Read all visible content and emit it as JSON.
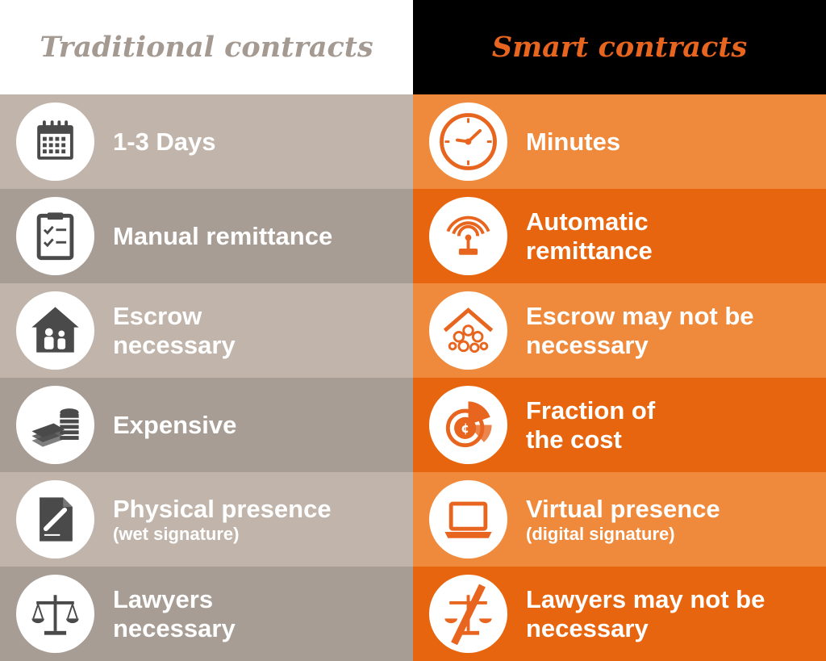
{
  "header": {
    "traditional_title": "Traditional contracts",
    "smart_title": "Smart contracts"
  },
  "colors": {
    "trad_light": "#c1b5ab",
    "trad_dark": "#a79d94",
    "smart_light": "#ef8a3c",
    "smart_dark": "#e8650f",
    "trad_icon": "#4a4a4a",
    "smart_icon": "#e8651f"
  },
  "rows": [
    {
      "trad": {
        "text": "1-3 Days",
        "sub": "",
        "icon": "calendar-icon"
      },
      "smart": {
        "text": "Minutes",
        "sub": "",
        "icon": "clock-icon"
      }
    },
    {
      "trad": {
        "text": "Manual remittance",
        "sub": "",
        "icon": "clipboard-checklist-icon"
      },
      "smart": {
        "text": "Automatic\nremittance",
        "sub": "",
        "icon": "wireless-signal-icon"
      }
    },
    {
      "trad": {
        "text": "Escrow\nnecessary",
        "sub": "",
        "icon": "house-family-icon"
      },
      "smart": {
        "text": "Escrow may not be\nnecessary",
        "sub": "",
        "icon": "house-network-icon"
      }
    },
    {
      "trad": {
        "text": "Expensive",
        "sub": "",
        "icon": "money-stack-icon"
      },
      "smart": {
        "text": "Fraction of\nthe cost",
        "sub": "",
        "icon": "pie-coin-icon"
      }
    },
    {
      "trad": {
        "text": "Physical presence",
        "sub": "(wet signature)",
        "icon": "document-pen-icon"
      },
      "smart": {
        "text": "Virtual presence",
        "sub": "(digital signature)",
        "icon": "laptop-icon"
      }
    },
    {
      "trad": {
        "text": "Lawyers\nnecessary",
        "sub": "",
        "icon": "scales-icon"
      },
      "smart": {
        "text": "Lawyers may not be\nnecessary",
        "sub": "",
        "icon": "scales-crossed-icon"
      }
    }
  ]
}
